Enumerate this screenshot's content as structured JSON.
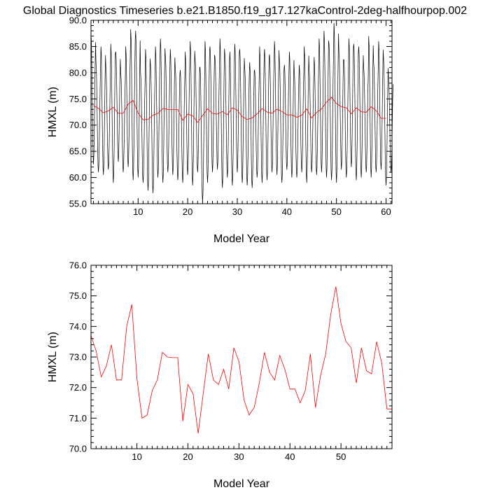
{
  "title": "Global Diagnostics Timeseries b.e21.B1850.f19_g17.127kaControl-2deg-halfhourpop.002",
  "colors": {
    "monthly": "#000000",
    "annual": "#ff0000"
  },
  "chart_data": [
    {
      "type": "line",
      "xlabel": "Model Year",
      "ylabel": "HMXL (m)",
      "xlim": [
        0.5,
        61.2
      ],
      "ylim": [
        55.0,
        90.0
      ],
      "xticks": [
        10,
        20,
        30,
        40,
        50,
        60
      ],
      "xtick_labels": [
        "10",
        "20",
        "30",
        "40",
        "50",
        "60"
      ],
      "yticks": [
        55,
        60,
        65,
        70,
        75,
        80,
        85,
        90
      ],
      "ytick_labels": [
        "55.0",
        "60.0",
        "65.0",
        "70.0",
        "75.0",
        "80.0",
        "85.0",
        "90.0"
      ],
      "series": [
        {
          "color": "#000000",
          "cycle": "monthly",
          "x_start": 0.5,
          "x_step": 0.0833333,
          "annual_max": [
            87.5,
            82.0,
            85.0,
            81.0,
            85.5,
            84.0,
            80.0,
            85.0,
            88.3,
            88.0,
            80.0,
            84.5,
            81.5,
            85.0,
            86.5,
            83.0,
            84.5,
            81.0,
            80.5,
            84.0,
            86.0,
            82.5,
            81.0,
            86.0,
            85.0,
            83.0,
            86.5,
            83.5,
            84.0,
            85.5,
            84.5,
            81.0,
            82.0,
            80.5,
            85.0,
            84.5,
            83.5,
            86.0,
            82.0,
            81.5,
            84.0,
            80.0,
            81.5,
            85.0,
            80.5,
            83.0,
            86.5,
            88.0,
            85.5,
            89.5,
            84.0,
            82.5,
            86.5,
            85.5,
            85.0,
            81.0,
            87.0,
            82.0,
            86.0,
            82.5,
            79.0
          ],
          "annual_min": [
            62.5,
            61.0,
            60.5,
            61.5,
            59.0,
            63.0,
            61.0,
            62.0,
            59.5,
            60.0,
            59.0,
            57.5,
            57.0,
            60.0,
            59.0,
            61.0,
            60.5,
            59.5,
            59.0,
            60.5,
            58.5,
            61.0,
            55.3,
            59.0,
            61.0,
            61.5,
            58.0,
            60.0,
            58.5,
            61.0,
            59.0,
            58.5,
            58.0,
            60.0,
            59.0,
            59.5,
            61.0,
            60.5,
            59.0,
            61.5,
            60.0,
            60.0,
            61.0,
            59.0,
            61.0,
            60.5,
            61.0,
            60.0,
            59.5,
            59.0,
            61.5,
            60.0,
            62.0,
            59.5,
            60.0,
            61.0,
            60.0,
            61.0,
            61.5,
            58.5,
            61.0
          ]
        },
        {
          "color": "#ff0000",
          "cycle": "annual",
          "x": [
            1,
            2,
            3,
            4,
            5,
            6,
            7,
            8,
            9,
            10,
            11,
            12,
            13,
            14,
            15,
            16,
            17,
            18,
            19,
            20,
            21,
            22,
            23,
            24,
            25,
            26,
            27,
            28,
            29,
            30,
            31,
            32,
            33,
            34,
            35,
            36,
            37,
            38,
            39,
            40,
            41,
            42,
            43,
            44,
            45,
            46,
            47,
            48,
            49,
            50,
            51,
            52,
            53,
            54,
            55,
            56,
            57,
            58,
            59,
            60
          ],
          "y": [
            73.7,
            73.2,
            72.35,
            72.7,
            73.4,
            72.25,
            72.25,
            74.0,
            74.72,
            72.3,
            71.0,
            71.1,
            71.9,
            72.25,
            73.15,
            73.0,
            72.98,
            72.98,
            70.9,
            72.1,
            71.8,
            70.5,
            71.8,
            73.1,
            72.25,
            72.1,
            72.6,
            71.95,
            73.3,
            72.85,
            71.6,
            71.1,
            71.35,
            72.15,
            73.15,
            72.5,
            72.25,
            73.05,
            72.6,
            71.95,
            71.95,
            71.5,
            71.9,
            73.1,
            71.35,
            72.4,
            73.1,
            74.4,
            75.3,
            74.1,
            73.5,
            73.3,
            72.15,
            73.3,
            72.55,
            72.45,
            73.5,
            72.8,
            71.3,
            71.3
          ]
        }
      ]
    },
    {
      "type": "line",
      "xlabel": "Model Year",
      "ylabel": "HMXL (m)",
      "xlim": [
        1,
        60
      ],
      "ylim": [
        70.0,
        76.0
      ],
      "xticks": [
        10,
        20,
        30,
        40,
        50
      ],
      "xtick_labels": [
        "10",
        "20",
        "30",
        "40",
        "50"
      ],
      "yticks": [
        70,
        71,
        72,
        73,
        74,
        75,
        76
      ],
      "ytick_labels": [
        "70.0",
        "71.0",
        "72.0",
        "73.0",
        "74.0",
        "75.0",
        "76.0"
      ],
      "series": [
        {
          "color": "#ff0000",
          "x": [
            1,
            2,
            3,
            4,
            5,
            6,
            7,
            8,
            9,
            10,
            11,
            12,
            13,
            14,
            15,
            16,
            17,
            18,
            19,
            20,
            21,
            22,
            23,
            24,
            25,
            26,
            27,
            28,
            29,
            30,
            31,
            32,
            33,
            34,
            35,
            36,
            37,
            38,
            39,
            40,
            41,
            42,
            43,
            44,
            45,
            46,
            47,
            48,
            49,
            50,
            51,
            52,
            53,
            54,
            55,
            56,
            57,
            58,
            59,
            60
          ],
          "y": [
            73.7,
            73.2,
            72.35,
            72.7,
            73.4,
            72.25,
            72.25,
            74.0,
            74.72,
            72.3,
            71.0,
            71.1,
            71.9,
            72.25,
            73.15,
            73.0,
            72.98,
            72.98,
            70.9,
            72.1,
            71.8,
            70.5,
            71.8,
            73.1,
            72.25,
            72.1,
            72.6,
            71.95,
            73.3,
            72.85,
            71.6,
            71.1,
            71.35,
            72.15,
            73.15,
            72.5,
            72.25,
            73.05,
            72.6,
            71.95,
            71.95,
            71.5,
            71.9,
            73.1,
            71.35,
            72.4,
            73.1,
            74.4,
            75.3,
            74.1,
            73.5,
            73.3,
            72.15,
            73.3,
            72.55,
            72.45,
            73.5,
            72.8,
            71.3,
            71.3
          ]
        }
      ]
    }
  ]
}
